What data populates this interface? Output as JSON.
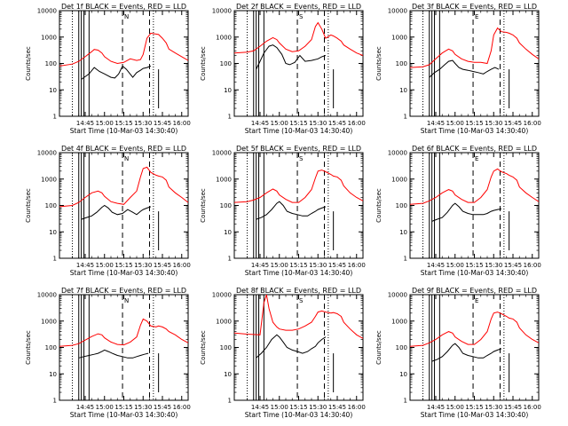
{
  "colors": {
    "events": "#000000",
    "lld": "#ff0000",
    "axes": "#000000"
  },
  "chart_data": {
    "type": "line",
    "layout": "3x3 grid of panels",
    "xlabel": "Start Time (10-Mar-03 14:30:40)",
    "ylabel": "Counts/sec",
    "yscale": "log",
    "ylim": [
      1,
      10000
    ],
    "y_ticks": [
      1,
      10,
      100,
      1000,
      10000
    ],
    "y_tick_labels": [
      "1",
      "10",
      "100",
      "1000",
      "10000"
    ],
    "xlim_min": [
      -5,
      95
    ],
    "x_ticks_min": [
      15,
      30,
      45,
      60,
      75,
      90
    ],
    "x_tick_labels": [
      "14:45",
      "15:00",
      "15:15",
      "15:30",
      "15:45",
      "16:00"
    ],
    "flag_labels": [
      "N",
      "S",
      "E"
    ],
    "panels": [
      {
        "title": "Det 1f BLACK = Events, RED = LLD",
        "attenuator": "N",
        "series": [
          {
            "name": "Events",
            "color": "#000000",
            "x": [
              12,
              18,
              22,
              26,
              30,
              35,
              38,
              41,
              44,
              47,
              52,
              55,
              58,
              60,
              63,
              66
            ],
            "y": [
              25,
              40,
              70,
              50,
              40,
              30,
              28,
              40,
              80,
              60,
              30,
              45,
              55,
              65,
              70,
              80
            ]
          },
          {
            "name": "LLD",
            "color": "#ff0000",
            "x": [
              -5,
              5,
              10,
              15,
              20,
              22,
              25,
              28,
              30,
              35,
              40,
              45,
              50,
              55,
              58,
              60,
              63,
              66,
              70,
              72,
              75,
              78,
              80,
              85,
              90,
              95
            ],
            "y": [
              80,
              95,
              120,
              180,
              280,
              340,
              320,
              250,
              180,
              120,
              100,
              110,
              150,
              130,
              140,
              220,
              900,
              1400,
              1300,
              1250,
              900,
              600,
              350,
              250,
              180,
              130
            ]
          }
        ]
      },
      {
        "title": "Det 2f BLACK = Events, RED = LLD",
        "attenuator": "S",
        "series": [
          {
            "name": "Events",
            "color": "#000000",
            "x": [
              12,
              15,
              18,
              22,
              25,
              28,
              32,
              35,
              38,
              42,
              46,
              50,
              55,
              60,
              63,
              66
            ],
            "y": [
              60,
              120,
              250,
              450,
              500,
              400,
              220,
              100,
              90,
              110,
              200,
              120,
              130,
              150,
              180,
              200
            ]
          },
          {
            "name": "LLD",
            "color": "#ff0000",
            "x": [
              -5,
              5,
              10,
              15,
              20,
              25,
              28,
              30,
              35,
              40,
              45,
              50,
              55,
              58,
              60,
              63,
              66,
              70,
              72,
              75,
              78,
              80,
              85,
              90,
              95
            ],
            "y": [
              250,
              270,
              300,
              450,
              700,
              950,
              800,
              600,
              350,
              280,
              300,
              450,
              800,
              2500,
              3500,
              2000,
              900,
              1200,
              1100,
              900,
              700,
              500,
              350,
              250,
              200
            ]
          }
        ]
      },
      {
        "title": "Det 3f BLACK = Events, RED = LLD",
        "attenuator": "E",
        "series": [
          {
            "name": "Events",
            "color": "#000000",
            "x": [
              10,
              14,
              18,
              22,
              25,
              28,
              30,
              33,
              36,
              40,
              44,
              48,
              52,
              55,
              58,
              61,
              64
            ],
            "y": [
              30,
              45,
              60,
              90,
              120,
              130,
              100,
              70,
              60,
              55,
              50,
              45,
              40,
              50,
              60,
              70,
              60
            ]
          },
          {
            "name": "LLD",
            "color": "#ff0000",
            "x": [
              -5,
              5,
              10,
              15,
              20,
              25,
              28,
              30,
              35,
              40,
              45,
              50,
              55,
              58,
              60,
              63,
              66,
              70,
              72,
              75,
              78,
              80,
              85,
              90,
              95
            ],
            "y": [
              70,
              75,
              90,
              150,
              250,
              350,
              300,
              220,
              150,
              120,
              110,
              110,
              100,
              300,
              1200,
              2200,
              1600,
              1500,
              1400,
              1200,
              900,
              600,
              350,
              220,
              150
            ]
          }
        ]
      },
      {
        "title": "Det 4f BLACK = Events, RED = LLD",
        "attenuator": "N",
        "series": [
          {
            "name": "Events",
            "color": "#000000",
            "x": [
              12,
              16,
              20,
              24,
              28,
              30,
              33,
              36,
              40,
              44,
              48,
              52,
              55,
              58,
              60,
              63,
              66
            ],
            "y": [
              30,
              35,
              40,
              55,
              85,
              100,
              80,
              55,
              45,
              50,
              70,
              55,
              45,
              60,
              70,
              80,
              90
            ]
          },
          {
            "name": "LLD",
            "color": "#ff0000",
            "x": [
              -5,
              5,
              10,
              15,
              20,
              25,
              28,
              30,
              35,
              40,
              45,
              50,
              55,
              58,
              60,
              63,
              66,
              70,
              72,
              75,
              78,
              80,
              85,
              90,
              95
            ],
            "y": [
              90,
              100,
              130,
              200,
              300,
              350,
              300,
              220,
              140,
              120,
              110,
              200,
              350,
              1200,
              2500,
              2800,
              1800,
              1400,
              1300,
              1200,
              900,
              500,
              300,
              200,
              130
            ]
          }
        ]
      },
      {
        "title": "Det 5f BLACK = Events, RED = LLD",
        "attenuator": "S",
        "series": [
          {
            "name": "Events",
            "color": "#000000",
            "x": [
              12,
              16,
              20,
              24,
              28,
              30,
              33,
              36,
              40,
              44,
              48,
              52,
              55,
              58,
              60,
              63,
              66
            ],
            "y": [
              30,
              35,
              45,
              70,
              120,
              140,
              100,
              60,
              50,
              45,
              40,
              40,
              50,
              60,
              70,
              80,
              90
            ]
          },
          {
            "name": "LLD",
            "color": "#ff0000",
            "x": [
              -5,
              5,
              10,
              15,
              20,
              25,
              28,
              30,
              35,
              40,
              45,
              50,
              55,
              58,
              60,
              63,
              66,
              70,
              72,
              75,
              78,
              80,
              85,
              90,
              95
            ],
            "y": [
              130,
              140,
              160,
              200,
              300,
              420,
              350,
              250,
              170,
              130,
              130,
              200,
              400,
              1100,
              2000,
              2200,
              1900,
              1500,
              1300,
              1200,
              900,
              550,
              300,
              200,
              150
            ]
          }
        ]
      },
      {
        "title": "Det 6f BLACK = Events, RED = LLD",
        "attenuator": "E",
        "series": [
          {
            "name": "Events",
            "color": "#000000",
            "x": [
              12,
              16,
              20,
              24,
              28,
              30,
              33,
              36,
              40,
              44,
              48,
              52,
              55,
              58,
              60,
              63,
              66
            ],
            "y": [
              25,
              30,
              35,
              55,
              100,
              120,
              90,
              60,
              50,
              45,
              45,
              45,
              50,
              60,
              65,
              70,
              75
            ]
          },
          {
            "name": "LLD",
            "color": "#ff0000",
            "x": [
              -5,
              5,
              10,
              15,
              20,
              25,
              28,
              30,
              35,
              40,
              45,
              50,
              55,
              58,
              60,
              63,
              66,
              70,
              72,
              75,
              78,
              80,
              85,
              90,
              95
            ],
            "y": [
              110,
              120,
              150,
              200,
              300,
              400,
              350,
              250,
              170,
              130,
              130,
              200,
              400,
              1200,
              2000,
              2400,
              1900,
              1600,
              1400,
              1200,
              900,
              500,
              300,
              200,
              140
            ]
          }
        ]
      },
      {
        "title": "Det 7f BLACK = Events, RED = LLD",
        "attenuator": "N",
        "series": [
          {
            "name": "Events",
            "color": "#000000",
            "x": [
              10,
              14,
              18,
              22,
              25,
              28,
              30,
              33,
              36,
              40,
              44,
              48,
              52,
              55,
              58,
              61,
              64
            ],
            "y": [
              40,
              45,
              50,
              55,
              60,
              70,
              80,
              70,
              60,
              50,
              45,
              40,
              40,
              45,
              50,
              55,
              60
            ]
          },
          {
            "name": "LLD",
            "color": "#ff0000",
            "x": [
              -5,
              5,
              10,
              15,
              20,
              25,
              28,
              30,
              35,
              40,
              45,
              50,
              55,
              58,
              60,
              63,
              66,
              70,
              72,
              75,
              78,
              80,
              85,
              90,
              95
            ],
            "y": [
              110,
              120,
              140,
              190,
              260,
              330,
              300,
              230,
              160,
              130,
              125,
              160,
              250,
              700,
              1200,
              1000,
              650,
              600,
              650,
              600,
              500,
              400,
              300,
              200,
              150
            ]
          }
        ]
      },
      {
        "title": "Det 8f BLACK = Events, RED = LLD",
        "attenuator": "S",
        "series": [
          {
            "name": "Events",
            "color": "#000000",
            "x": [
              12,
              16,
              20,
              24,
              28,
              30,
              33,
              36,
              40,
              44,
              48,
              52,
              55,
              58,
              60,
              63,
              66
            ],
            "y": [
              40,
              60,
              100,
              200,
              300,
              250,
              160,
              100,
              80,
              70,
              60,
              70,
              90,
              110,
              150,
              200,
              250
            ]
          },
          {
            "name": "LLD",
            "color": "#ff0000",
            "x": [
              -5,
              5,
              10,
              15,
              18,
              20,
              22,
              25,
              28,
              30,
              35,
              40,
              45,
              50,
              55,
              58,
              60,
              63,
              66,
              70,
              72,
              75,
              78,
              80,
              85,
              90,
              95
            ],
            "y": [
              350,
              320,
              310,
              300,
              5000,
              10000,
              3000,
              900,
              600,
              500,
              450,
              450,
              500,
              650,
              900,
              1500,
              2200,
              2400,
              2200,
              2000,
              2100,
              1900,
              1500,
              900,
              500,
              300,
              220
            ]
          }
        ]
      },
      {
        "title": "Det 9f BLACK = Events, RED = LLD",
        "attenuator": "E",
        "series": [
          {
            "name": "Events",
            "color": "#000000",
            "x": [
              12,
              16,
              20,
              24,
              28,
              30,
              33,
              36,
              40,
              44,
              48,
              52,
              55,
              58,
              60,
              63,
              66
            ],
            "y": [
              30,
              35,
              45,
              70,
              120,
              140,
              100,
              60,
              50,
              45,
              40,
              40,
              50,
              60,
              70,
              80,
              90
            ]
          },
          {
            "name": "LLD",
            "color": "#ff0000",
            "x": [
              -5,
              5,
              10,
              15,
              20,
              25,
              28,
              30,
              35,
              40,
              45,
              50,
              55,
              58,
              60,
              63,
              66,
              70,
              72,
              75,
              78,
              80,
              85,
              90,
              95
            ],
            "y": [
              110,
              120,
              150,
              200,
              300,
              400,
              350,
              250,
              170,
              130,
              130,
              200,
              400,
              1200,
              2000,
              2200,
              1900,
              1500,
              1300,
              1200,
              900,
              550,
              300,
              200,
              150
            ]
          }
        ]
      }
    ],
    "event_markers_min": {
      "dotted": [
        5,
        68
      ],
      "dashed": [
        44,
        65
      ],
      "solid": [
        10,
        12,
        14,
        18
      ]
    }
  }
}
